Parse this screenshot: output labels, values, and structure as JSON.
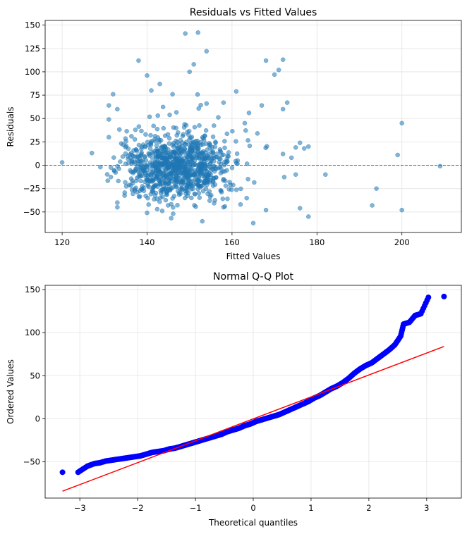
{
  "chart_data": [
    {
      "type": "scatter",
      "title": "Residuals vs Fitted Values",
      "xlabel": "Fitted Values",
      "ylabel": "Residuals",
      "xlim": [
        116,
        214
      ],
      "ylim": [
        -72,
        155
      ],
      "xticks": [
        120,
        140,
        160,
        180,
        200
      ],
      "yticks": [
        -50,
        -25,
        0,
        25,
        50,
        75,
        100,
        125,
        150
      ],
      "grid": true,
      "reference_line": {
        "y": 0,
        "style": "dashed",
        "color": "#e41a1c"
      },
      "point_color": "#1f77b4",
      "point_alpha": 0.55,
      "highlighted_points": [
        [
          120,
          3
        ],
        [
          127,
          13
        ],
        [
          129,
          -2
        ],
        [
          131,
          30
        ],
        [
          131,
          64
        ],
        [
          132,
          76
        ],
        [
          133,
          60
        ],
        [
          131,
          49
        ],
        [
          133,
          -40
        ],
        [
          133,
          -45
        ],
        [
          138,
          112
        ],
        [
          140,
          96
        ],
        [
          141,
          80
        ],
        [
          143,
          87
        ],
        [
          146,
          76
        ],
        [
          149,
          141
        ],
        [
          152,
          142
        ],
        [
          151,
          108
        ],
        [
          150,
          100
        ],
        [
          154,
          122
        ],
        [
          154,
          66
        ],
        [
          158,
          67
        ],
        [
          161,
          79
        ],
        [
          163,
          45
        ],
        [
          164,
          56
        ],
        [
          167,
          64
        ],
        [
          168,
          112
        ],
        [
          170,
          97
        ],
        [
          172,
          113
        ],
        [
          171,
          102
        ],
        [
          172,
          60
        ],
        [
          173,
          67
        ],
        [
          175,
          19
        ],
        [
          176,
          24
        ],
        [
          177,
          18
        ],
        [
          178,
          20
        ],
        [
          172,
          12
        ],
        [
          174,
          8
        ],
        [
          175,
          -10
        ],
        [
          176,
          -46
        ],
        [
          178,
          -55
        ],
        [
          182,
          -10
        ],
        [
          193,
          -43
        ],
        [
          194,
          -25
        ],
        [
          199,
          11
        ],
        [
          200,
          45
        ],
        [
          200,
          -48
        ],
        [
          209,
          -1
        ],
        [
          168,
          -48
        ],
        [
          165,
          -62
        ],
        [
          153,
          -60
        ],
        [
          140,
          -51
        ],
        [
          158,
          -45
        ],
        [
          162,
          -42
        ]
      ],
      "cluster_summary": {
        "center_x": 147,
        "center_y": -5,
        "n_points": 1000
      }
    },
    {
      "type": "scatter",
      "title": "Normal Q-Q Plot",
      "xlabel": "Theoretical quantiles",
      "ylabel": "Ordered Values",
      "xlim": [
        -3.6,
        3.6
      ],
      "ylim": [
        -92,
        155
      ],
      "xticks": [
        -3,
        -2,
        -1,
        0,
        1,
        2,
        3
      ],
      "yticks": [
        -50,
        0,
        50,
        100,
        150
      ],
      "grid": true,
      "point_color": "#0000ff",
      "fit_line": {
        "x": [
          -3.3,
          3.3
        ],
        "y": [
          -84,
          84
        ],
        "color": "#ff0000"
      },
      "points": [
        [
          -3.3,
          -62
        ],
        [
          -3.03,
          -62
        ],
        [
          -2.87,
          -55
        ],
        [
          -2.75,
          -52
        ],
        [
          -2.65,
          -51
        ],
        [
          -2.55,
          -49
        ],
        [
          -2.45,
          -48
        ],
        [
          -2.35,
          -47
        ],
        [
          -2.25,
          -46
        ],
        [
          -2.15,
          -45
        ],
        [
          -2.05,
          -44
        ],
        [
          -1.95,
          -43
        ],
        [
          -1.85,
          -41
        ],
        [
          -1.75,
          -39
        ],
        [
          -1.65,
          -38
        ],
        [
          -1.55,
          -37
        ],
        [
          -1.45,
          -35
        ],
        [
          -1.35,
          -34
        ],
        [
          -1.25,
          -32
        ],
        [
          -1.15,
          -30
        ],
        [
          -1.05,
          -28
        ],
        [
          -0.95,
          -26
        ],
        [
          -0.85,
          -24
        ],
        [
          -0.75,
          -22
        ],
        [
          -0.65,
          -20
        ],
        [
          -0.55,
          -18
        ],
        [
          -0.45,
          -15
        ],
        [
          -0.35,
          -13
        ],
        [
          -0.25,
          -11
        ],
        [
          -0.15,
          -8
        ],
        [
          -0.05,
          -6
        ],
        [
          0.05,
          -3
        ],
        [
          0.15,
          -1
        ],
        [
          0.25,
          1
        ],
        [
          0.35,
          3
        ],
        [
          0.45,
          5
        ],
        [
          0.55,
          8
        ],
        [
          0.65,
          11
        ],
        [
          0.75,
          14
        ],
        [
          0.85,
          17
        ],
        [
          0.95,
          20
        ],
        [
          1.05,
          24
        ],
        [
          1.15,
          27
        ],
        [
          1.25,
          31
        ],
        [
          1.35,
          35
        ],
        [
          1.45,
          38
        ],
        [
          1.55,
          42
        ],
        [
          1.65,
          47
        ],
        [
          1.75,
          53
        ],
        [
          1.85,
          58
        ],
        [
          1.95,
          62
        ],
        [
          2.05,
          65
        ],
        [
          2.15,
          70
        ],
        [
          2.25,
          75
        ],
        [
          2.35,
          80
        ],
        [
          2.45,
          86
        ],
        [
          2.55,
          96
        ],
        [
          2.6,
          110
        ],
        [
          2.7,
          112
        ],
        [
          2.8,
          120
        ],
        [
          2.9,
          122
        ],
        [
          3.03,
          141
        ],
        [
          3.3,
          142
        ]
      ]
    }
  ]
}
